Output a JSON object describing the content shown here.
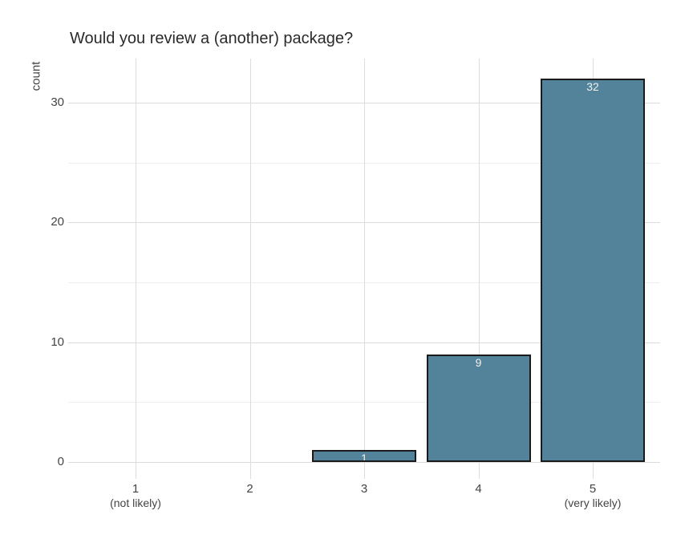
{
  "title": "Would you review a (another) package?",
  "chart_data": {
    "type": "bar",
    "title": "Would you review a (another) package?",
    "xlabel": "",
    "ylabel": "count",
    "categories": [
      1,
      2,
      3,
      4,
      5
    ],
    "category_sublabels": [
      "(not likely)",
      "",
      "",
      "",
      "(very likely)"
    ],
    "values": [
      0,
      0,
      1,
      9,
      32
    ],
    "bar_labels": [
      "",
      "",
      "1",
      "9",
      "32"
    ],
    "y_ticks": [
      0,
      10,
      20,
      30
    ],
    "y_minor_ticks": [
      5,
      15,
      25
    ],
    "ylim": [
      -1.3,
      33.6
    ],
    "grid": "major and minor horizontal, major vertical",
    "legend_position": "none"
  },
  "colors": {
    "bar_fill": "#52839B",
    "bar_border": "#1a1a1a",
    "bar_label_text": "#f0f0f0",
    "grid_major": "#dcdcdc",
    "grid_minor": "#eeeeee",
    "tick_text": "#444444",
    "title_text": "#2a2a2a",
    "background": "#ffffff"
  }
}
